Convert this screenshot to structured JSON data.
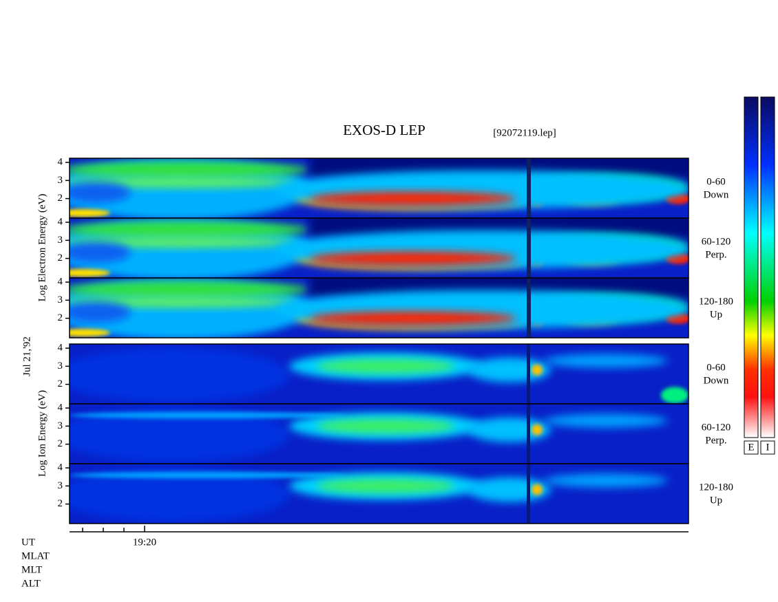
{
  "title": "EXOS-D LEP",
  "file": "[92072119.lep]",
  "date_label": "Jul 21,'92",
  "electron_axis_label": "Log Electron Energy (eV)",
  "ion_axis_label": "Log Ion Energy (eV)",
  "ylim": [
    0.92,
    4.23
  ],
  "yticks": [
    2,
    3,
    4
  ],
  "panels": [
    {
      "angle": "0-60",
      "direction": "Down"
    },
    {
      "angle": "60-120",
      "direction": "Perp."
    },
    {
      "angle": "120-180",
      "direction": "Up"
    },
    {
      "angle": "0-60",
      "direction": "Down"
    },
    {
      "angle": "60-120",
      "direction": "Perp."
    },
    {
      "angle": "120-180",
      "direction": "Up"
    }
  ],
  "time_label": "19:20",
  "rows": [
    "UT",
    "MLAT",
    "MLT",
    "ALT"
  ],
  "colorbars": [
    "E",
    "I"
  ]
}
